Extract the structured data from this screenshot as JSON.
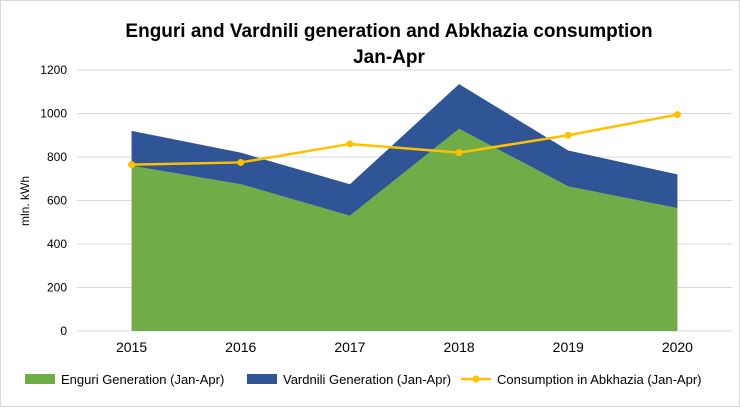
{
  "chart_data": {
    "type": "area",
    "title_line1": "Enguri and Vardnili generation and Abkhazia consumption",
    "title_line2": "Jan-Apr",
    "ylabel": "mln. kWh",
    "xlabel": "",
    "ylim": [
      0,
      1200
    ],
    "yticks": [
      "0",
      "200",
      "400",
      "600",
      "800",
      "1000",
      "1200"
    ],
    "categories": [
      "2015",
      "2016",
      "2017",
      "2018",
      "2019",
      "2020"
    ],
    "grid": true,
    "legend_position": "bottom",
    "series": [
      {
        "name": "Enguri Generation (Jan-Apr)",
        "kind": "stacked-area",
        "color": "#70ad47",
        "values": [
          760,
          675,
          530,
          930,
          665,
          565
        ]
      },
      {
        "name": "Vardnili Generation (Jan-Apr)",
        "kind": "stacked-area",
        "color": "#2f5597",
        "values": [
          160,
          145,
          145,
          205,
          165,
          155
        ]
      },
      {
        "name": "Consumption in Abkhazia (Jan-Apr)",
        "kind": "line",
        "color": "#ffc000",
        "values": [
          765,
          775,
          860,
          820,
          900,
          995
        ]
      }
    ]
  }
}
